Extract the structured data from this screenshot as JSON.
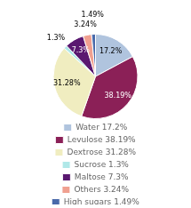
{
  "chart_data": {
    "type": "pie",
    "categories": [
      "Water 17.2%",
      "Levulose 38.19%",
      "Dextrose 31.28%",
      "Sucrose 1.3%",
      "Maltose 7.3%",
      "Others 3.24%",
      "High sugars 1.49%"
    ],
    "values": [
      17.2,
      38.19,
      31.28,
      1.3,
      7.3,
      3.24,
      1.49
    ],
    "value_labels": [
      "17.2%",
      "38.19%",
      "31.28%",
      "1.3%",
      "7.3%",
      "3.24%",
      "1.49%"
    ],
    "colors": [
      "#b0c4de",
      "#8b2057",
      "#f0edc0",
      "#b0e8e8",
      "#5a1870",
      "#f0a090",
      "#4a6aaa"
    ],
    "data_labels": true,
    "legend": "bottom"
  }
}
